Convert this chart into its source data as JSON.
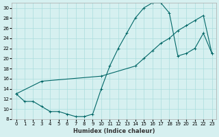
{
  "xlabel": "Humidex (Indice chaleur)",
  "ylabel": "",
  "bg_color": "#d6f0f0",
  "grid_color": "#aadddd",
  "line_color": "#006666",
  "xlim": [
    -0.5,
    23.5
  ],
  "ylim": [
    8,
    31
  ],
  "xticks": [
    0,
    1,
    2,
    3,
    4,
    5,
    6,
    7,
    8,
    9,
    10,
    11,
    12,
    13,
    14,
    15,
    16,
    17,
    18,
    19,
    20,
    21,
    22,
    23
  ],
  "yticks": [
    8,
    10,
    12,
    14,
    16,
    18,
    20,
    22,
    24,
    26,
    28,
    30
  ],
  "line1_x": [
    0,
    1,
    2,
    3,
    4,
    5,
    6,
    7,
    8,
    9,
    10,
    11,
    12,
    13,
    14,
    15,
    16,
    17,
    18,
    19,
    20,
    21,
    22,
    23
  ],
  "line1_y": [
    13,
    11.5,
    11.5,
    10.5,
    9.5,
    9.5,
    9.0,
    8.5,
    8.5,
    9.0,
    14.0,
    18.5,
    22.0,
    25.0,
    28.0,
    30.0,
    31.0,
    31.0,
    29.0,
    20.5,
    21.0,
    22.0,
    25.0,
    21.0
  ],
  "line2_x": [
    0,
    3,
    10,
    14,
    15,
    16,
    17,
    18,
    19,
    20,
    21,
    22,
    23
  ],
  "line2_y": [
    13,
    15.5,
    16.5,
    18.5,
    20.0,
    21.5,
    23.0,
    24.0,
    25.5,
    26.5,
    27.5,
    28.5,
    21.0
  ]
}
